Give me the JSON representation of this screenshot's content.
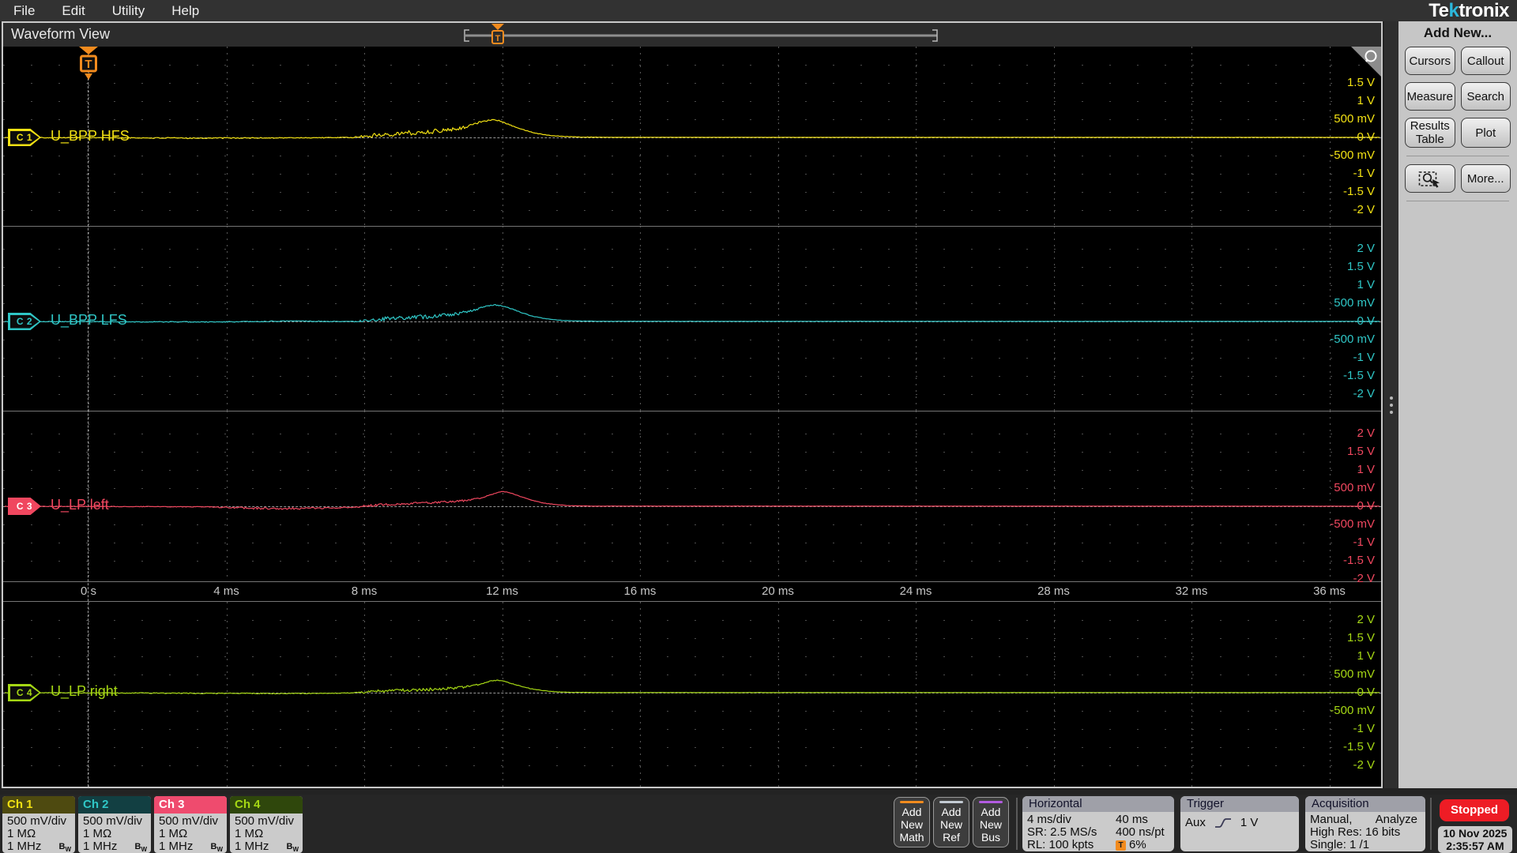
{
  "menu": {
    "items": [
      "File",
      "Edit",
      "Utility",
      "Help"
    ]
  },
  "logo": {
    "pre": "Te",
    "k": "k",
    "post": "tronix"
  },
  "waveform_view": {
    "title": "Waveform View"
  },
  "minimap": {
    "trigger_label": "T"
  },
  "side_panel": {
    "title": "Add New...",
    "buttons": [
      {
        "label": "Cursors"
      },
      {
        "label": "Callout"
      },
      {
        "label": "Measure"
      },
      {
        "label": "Search"
      },
      {
        "label": "Results Table"
      },
      {
        "label": "Plot"
      },
      {
        "label": "",
        "icon": "zoom-select"
      },
      {
        "label": "More..."
      }
    ]
  },
  "plot": {
    "trigger_label": "T",
    "time_labels": [
      "0 s",
      "4 ms",
      "8 ms",
      "12 ms",
      "16 ms",
      "20 ms",
      "24 ms",
      "28 ms",
      "32 ms",
      "36 ms"
    ],
    "volt_labels": [
      "2 V",
      "1.5 V",
      "1 V",
      "500 mV",
      "0 V",
      "-500 mV",
      "-1 V",
      "-1.5 V",
      "-2 V"
    ],
    "channels": [
      {
        "id": "C 1",
        "name": "U_BPP HFS",
        "color": "#f2e113",
        "hide_top_volt": true,
        "filled": false,
        "seed": 101,
        "env": [
          [
            -2.5,
            -4
          ],
          [
            0,
            -8
          ],
          [
            1.5,
            -14
          ],
          [
            3,
            -18
          ],
          [
            4.5,
            -16
          ],
          [
            6,
            -10
          ],
          [
            7,
            -6
          ],
          [
            7.7,
            0
          ],
          [
            8,
            25
          ],
          [
            8.4,
            70
          ],
          [
            8.8,
            100
          ],
          [
            9.3,
            120
          ],
          [
            9.8,
            150
          ],
          [
            10.3,
            195
          ],
          [
            10.8,
            260
          ],
          [
            11.1,
            330
          ],
          [
            11.4,
            440
          ],
          [
            11.7,
            490
          ],
          [
            11.9,
            465
          ],
          [
            12.1,
            390
          ],
          [
            12.4,
            280
          ],
          [
            12.7,
            185
          ],
          [
            13,
            110
          ],
          [
            13.4,
            55
          ],
          [
            13.8,
            25
          ],
          [
            14.3,
            10
          ],
          [
            15,
            4
          ],
          [
            20,
            2
          ],
          [
            37.6,
            2
          ]
        ],
        "noise": [
          [
            -2.5,
            8
          ],
          [
            0,
            10
          ],
          [
            2,
            14
          ],
          [
            4,
            16
          ],
          [
            6,
            12
          ],
          [
            7.6,
            10
          ],
          [
            8,
            45
          ],
          [
            8.5,
            65
          ],
          [
            9.5,
            70
          ],
          [
            10.5,
            55
          ],
          [
            11,
            40
          ],
          [
            11.5,
            22
          ],
          [
            11.9,
            12
          ],
          [
            12.3,
            10
          ],
          [
            13,
            8
          ],
          [
            14,
            5
          ],
          [
            16,
            3
          ],
          [
            37.6,
            3
          ]
        ]
      },
      {
        "id": "C 2",
        "name": "U_BPP LFS",
        "color": "#2fc6c6",
        "hide_top_volt": false,
        "filled": false,
        "seed": 202,
        "env": [
          [
            -2.5,
            -3
          ],
          [
            0,
            -6
          ],
          [
            2,
            -12
          ],
          [
            3.5,
            -14
          ],
          [
            5,
            -4
          ],
          [
            5.6,
            10
          ],
          [
            6.1,
            16
          ],
          [
            6.6,
            6
          ],
          [
            7.2,
            -2
          ],
          [
            7.7,
            2
          ],
          [
            8,
            22
          ],
          [
            8.4,
            60
          ],
          [
            8.8,
            85
          ],
          [
            9.3,
            105
          ],
          [
            9.8,
            130
          ],
          [
            10.3,
            170
          ],
          [
            10.8,
            230
          ],
          [
            11.2,
            310
          ],
          [
            11.5,
            420
          ],
          [
            11.8,
            455
          ],
          [
            12,
            430
          ],
          [
            12.3,
            340
          ],
          [
            12.6,
            230
          ],
          [
            12.9,
            140
          ],
          [
            13.3,
            70
          ],
          [
            13.7,
            30
          ],
          [
            14.2,
            12
          ],
          [
            15,
            4
          ],
          [
            37.6,
            2
          ]
        ],
        "noise": [
          [
            -2.5,
            7
          ],
          [
            0,
            9
          ],
          [
            2,
            12
          ],
          [
            4,
            12
          ],
          [
            6,
            11
          ],
          [
            7.6,
            9
          ],
          [
            8,
            38
          ],
          [
            8.5,
            55
          ],
          [
            9.5,
            60
          ],
          [
            10.5,
            48
          ],
          [
            11,
            35
          ],
          [
            11.5,
            18
          ],
          [
            12,
            10
          ],
          [
            13,
            7
          ],
          [
            14,
            4
          ],
          [
            37.6,
            3
          ]
        ]
      },
      {
        "id": "C 3",
        "name": "U_LP left",
        "color": "#f0475f",
        "hide_top_volt": false,
        "filled": true,
        "seed": 303,
        "env": [
          [
            -2.5,
            -4
          ],
          [
            0,
            -6
          ],
          [
            2,
            -10
          ],
          [
            3.5,
            -18
          ],
          [
            4.2,
            -40
          ],
          [
            5,
            -58
          ],
          [
            5.8,
            -62
          ],
          [
            6.6,
            -52
          ],
          [
            7.3,
            -40
          ],
          [
            7.8,
            -15
          ],
          [
            8.1,
            15
          ],
          [
            8.5,
            45
          ],
          [
            9,
            68
          ],
          [
            9.5,
            82
          ],
          [
            10,
            100
          ],
          [
            10.5,
            125
          ],
          [
            11,
            165
          ],
          [
            11.4,
            230
          ],
          [
            11.8,
            360
          ],
          [
            12,
            405
          ],
          [
            12.2,
            380
          ],
          [
            12.5,
            280
          ],
          [
            12.8,
            180
          ],
          [
            13.2,
            90
          ],
          [
            13.6,
            40
          ],
          [
            14,
            15
          ],
          [
            14.6,
            5
          ],
          [
            37.6,
            2
          ]
        ],
        "noise": [
          [
            -2.5,
            6
          ],
          [
            0,
            8
          ],
          [
            3.6,
            9
          ],
          [
            4.2,
            26
          ],
          [
            6.5,
            26
          ],
          [
            7.5,
            16
          ],
          [
            8,
            28
          ],
          [
            9,
            34
          ],
          [
            10,
            30
          ],
          [
            11,
            24
          ],
          [
            11.6,
            12
          ],
          [
            12,
            7
          ],
          [
            13,
            6
          ],
          [
            14,
            4
          ],
          [
            37.6,
            3
          ]
        ]
      },
      {
        "id": "C 4",
        "name": "U_LP right",
        "color": "#a5d714",
        "hide_top_volt": false,
        "filled": false,
        "seed": 404,
        "env": [
          [
            -2.5,
            -3
          ],
          [
            0,
            -5
          ],
          [
            2,
            -12
          ],
          [
            3.5,
            -22
          ],
          [
            4.5,
            -18
          ],
          [
            5.5,
            -24
          ],
          [
            6.5,
            -20
          ],
          [
            7.3,
            -12
          ],
          [
            7.8,
            -2
          ],
          [
            8.1,
            18
          ],
          [
            8.5,
            42
          ],
          [
            9,
            60
          ],
          [
            9.5,
            75
          ],
          [
            10,
            95
          ],
          [
            10.5,
            120
          ],
          [
            11,
            165
          ],
          [
            11.4,
            250
          ],
          [
            11.7,
            325
          ],
          [
            11.9,
            340
          ],
          [
            12.1,
            300
          ],
          [
            12.4,
            215
          ],
          [
            12.8,
            115
          ],
          [
            13.2,
            55
          ],
          [
            13.6,
            22
          ],
          [
            14.1,
            8
          ],
          [
            15,
            3
          ],
          [
            37.6,
            2
          ]
        ],
        "noise": [
          [
            -2.5,
            6
          ],
          [
            0,
            9
          ],
          [
            2,
            12
          ],
          [
            5,
            12
          ],
          [
            7.7,
            9
          ],
          [
            8,
            32
          ],
          [
            8.5,
            45
          ],
          [
            9.5,
            48
          ],
          [
            10.5,
            40
          ],
          [
            11,
            28
          ],
          [
            11.5,
            15
          ],
          [
            12,
            9
          ],
          [
            13,
            6
          ],
          [
            14,
            4
          ],
          [
            37.6,
            3
          ]
        ]
      }
    ]
  },
  "bottom": {
    "channel_badges": [
      {
        "label": "Ch 1",
        "header_bg": "#4e4a10",
        "header_fg": "#f2e113",
        "lines": [
          "500 mV/div",
          "1 MΩ",
          "1 MHz"
        ],
        "bw": "B"
      },
      {
        "label": "Ch 2",
        "header_bg": "#123f42",
        "header_fg": "#2fc6c6",
        "lines": [
          "500 mV/div",
          "1 MΩ",
          "1 MHz"
        ],
        "bw": "B"
      },
      {
        "label": "Ch 3",
        "header_bg": "#ef4b6e",
        "header_fg": "#ffffff",
        "lines": [
          "500 mV/div",
          "1 MΩ",
          "1 MHz"
        ],
        "bw": "B"
      },
      {
        "label": "Ch 4",
        "header_bg": "#2f470c",
        "header_fg": "#a5d714",
        "lines": [
          "500 mV/div",
          "1 MΩ",
          "1 MHz"
        ],
        "bw": "B"
      }
    ],
    "add_buttons": [
      {
        "lines": [
          "Add",
          "New",
          "Math"
        ],
        "accent": "#f28b1e"
      },
      {
        "lines": [
          "Add",
          "New",
          "Ref"
        ],
        "accent": "#c3cbd3"
      },
      {
        "lines": [
          "Add",
          "New",
          "Bus"
        ],
        "accent": "#b25be0"
      }
    ],
    "horizontal": {
      "title": "Horizontal",
      "rows": [
        {
          "left": "4 ms/div",
          "right": "40 ms",
          "right_icon": false
        },
        {
          "left": "SR: 2.5 MS/s",
          "right": "400 ns/pt",
          "right_icon": false
        },
        {
          "left": "RL: 100 kpts",
          "right": "6%",
          "right_icon": true
        }
      ],
      "trig_icon_label": "T"
    },
    "trigger": {
      "title": "Trigger",
      "source": "Aux",
      "level": "1 V"
    },
    "acquisition": {
      "title": "Acquisition",
      "line1a": "Manual,",
      "line1b": "Analyze",
      "line2": "High Res: 16 bits",
      "line3": "Single: 1 /1"
    },
    "stopped": "Stopped",
    "datetime": {
      "date": "10 Nov 2025",
      "time": "2:35:57 AM"
    }
  }
}
